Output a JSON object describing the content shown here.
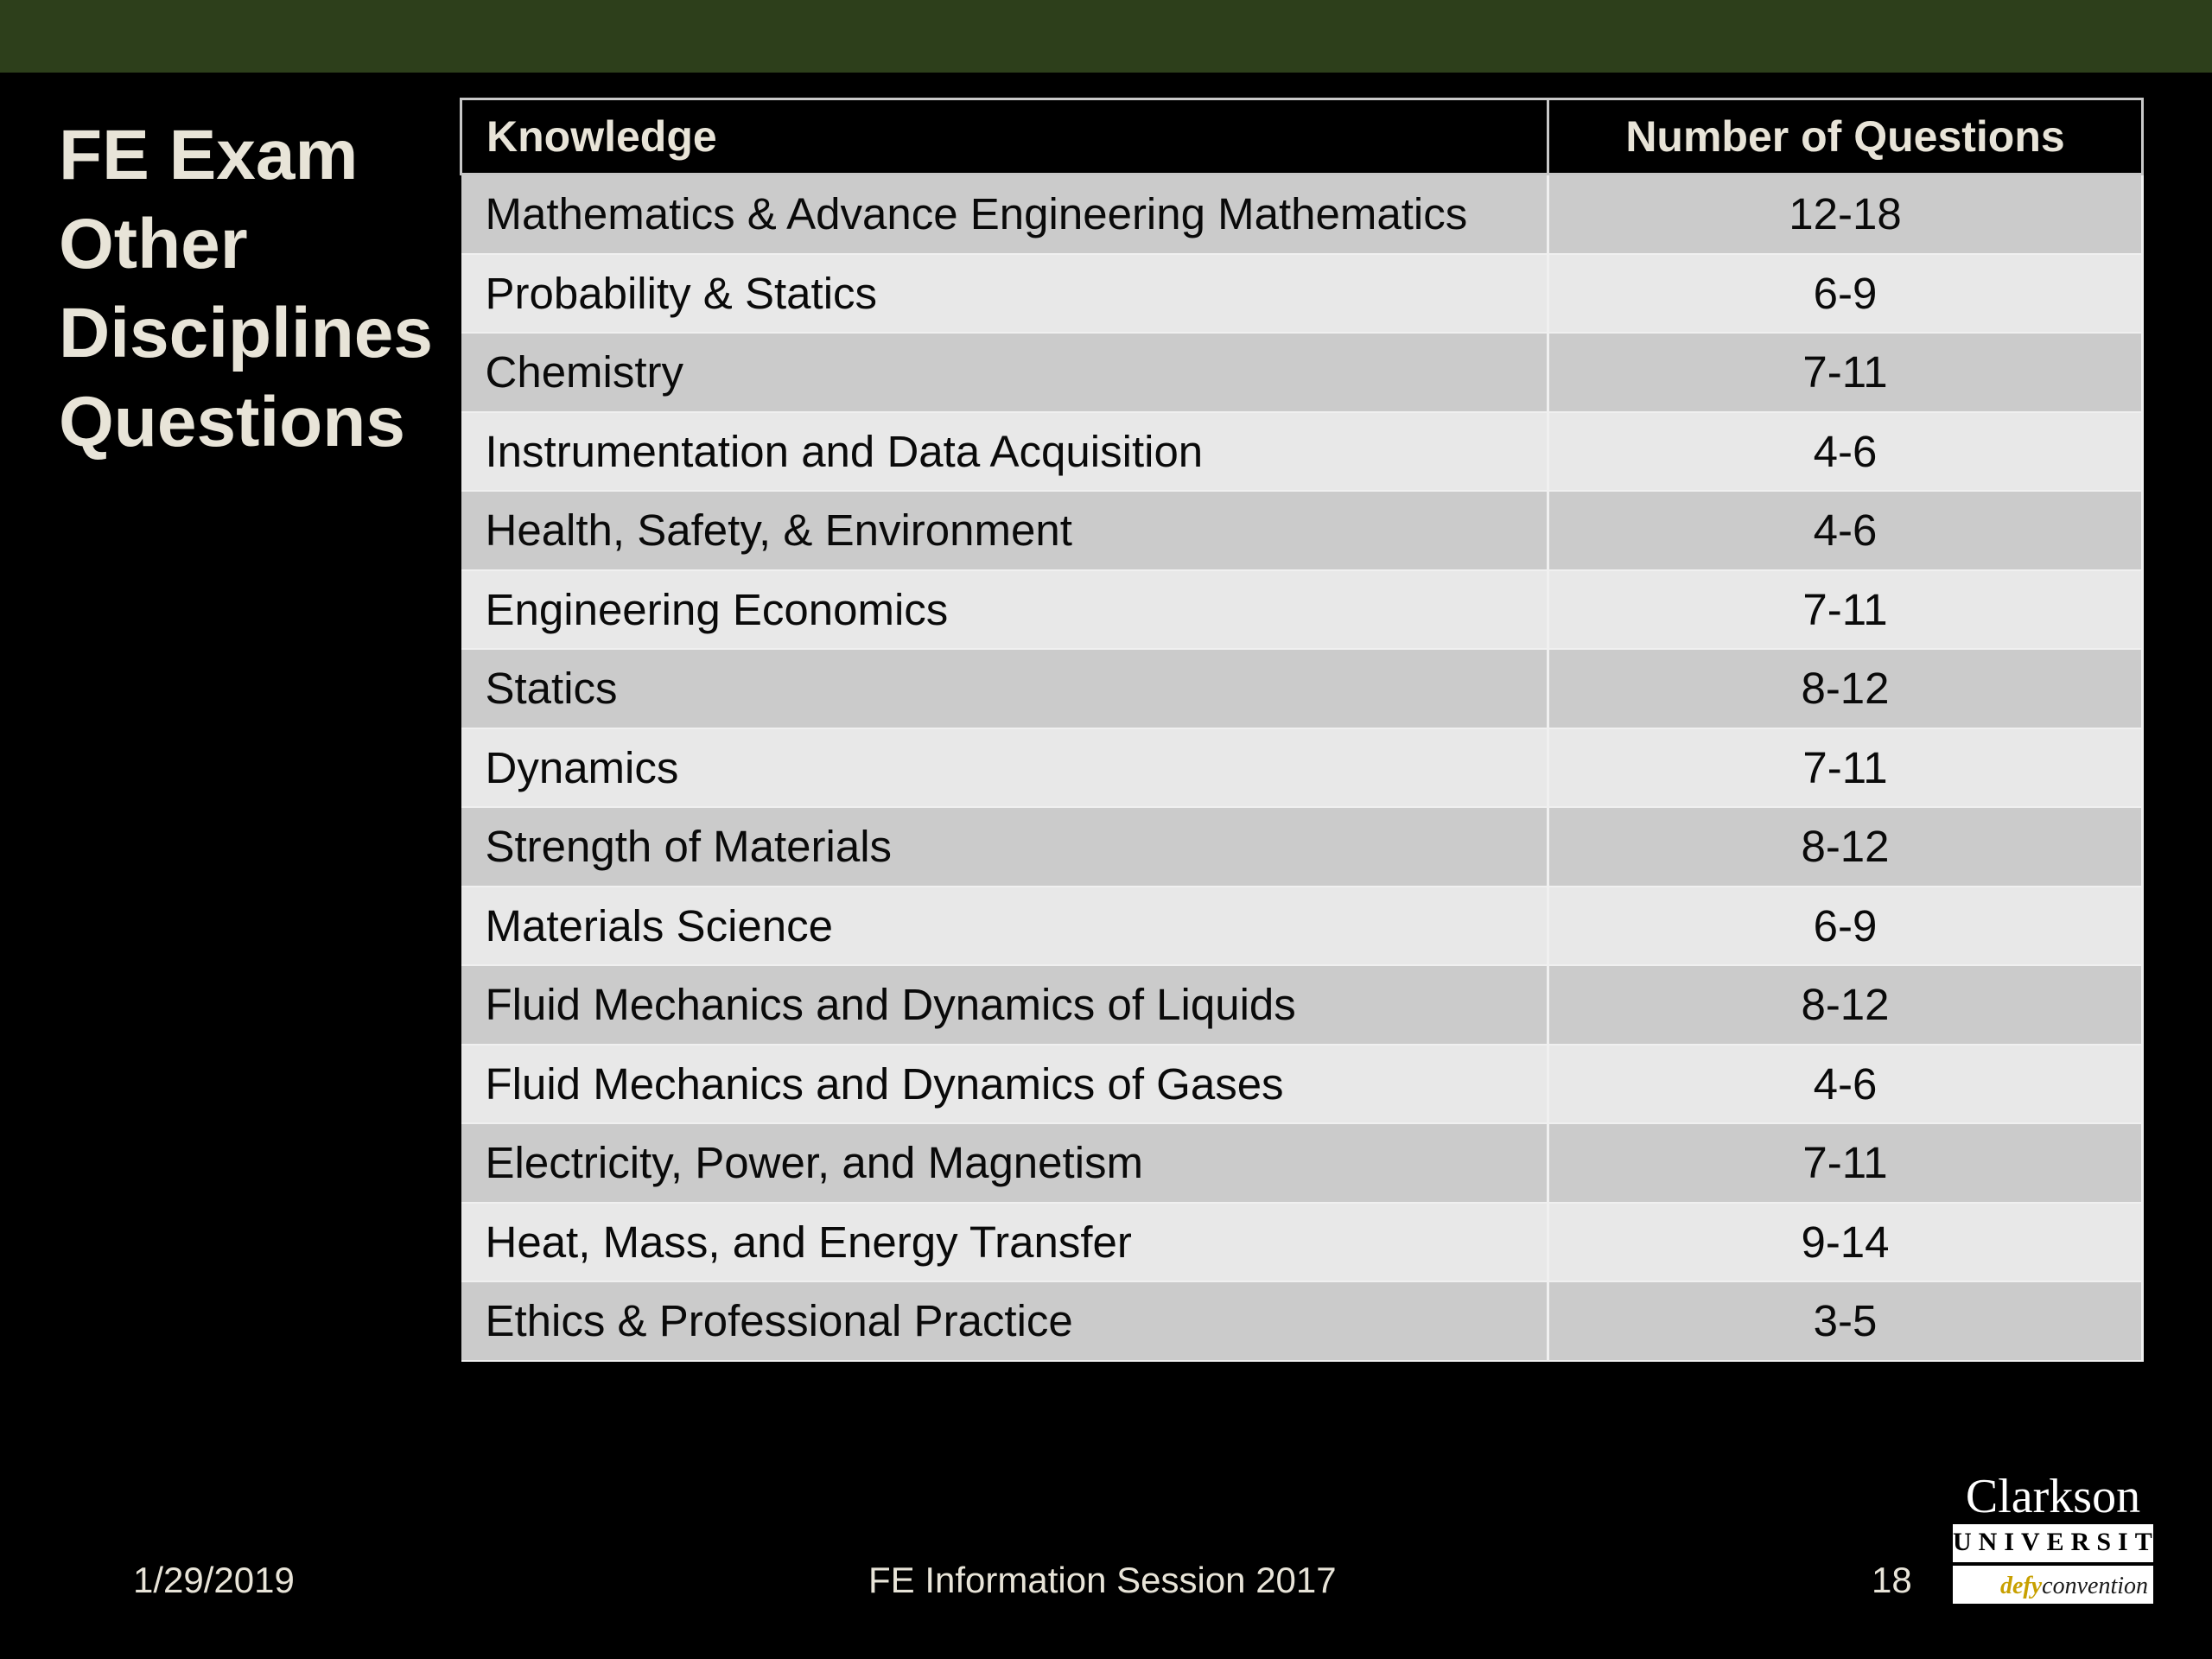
{
  "slide": {
    "title_lines": [
      "FE Exam",
      "Other",
      "Disciplines",
      "Questions"
    ]
  },
  "table": {
    "headers": [
      "Knowledge",
      "Number of Questions"
    ],
    "rows": [
      [
        "Mathematics & Advance Engineering Mathematics",
        "12-18"
      ],
      [
        "Probability & Statics",
        "6-9"
      ],
      [
        "Chemistry",
        "7-11"
      ],
      [
        "Instrumentation and Data Acquisition",
        "4-6"
      ],
      [
        "Health, Safety, & Environment",
        "4-6"
      ],
      [
        "Engineering Economics",
        "7-11"
      ],
      [
        "Statics",
        "8-12"
      ],
      [
        "Dynamics",
        "7-11"
      ],
      [
        "Strength of Materials",
        "8-12"
      ],
      [
        "Materials Science",
        "6-9"
      ],
      [
        "Fluid Mechanics and Dynamics of Liquids",
        "8-12"
      ],
      [
        "Fluid Mechanics and Dynamics of Gases",
        "4-6"
      ],
      [
        "Electricity, Power, and Magnetism",
        "7-11"
      ],
      [
        "Heat, Mass, and Energy Transfer",
        "9-14"
      ],
      [
        "Ethics & Professional Practice",
        "3-5"
      ]
    ]
  },
  "footer": {
    "date": "1/29/2019",
    "title": "FE Information Session 2017",
    "page": "18"
  },
  "logo": {
    "name": "Clarkson",
    "university": "UNIVERSITY",
    "tag_defy": "defy",
    "tag_rest": "convention"
  },
  "colors": {
    "top_bar": "#2d3f1b",
    "title_text": "#e8e4d8",
    "row_dark": "#cbcbcb",
    "row_light": "#e8e8e8"
  }
}
